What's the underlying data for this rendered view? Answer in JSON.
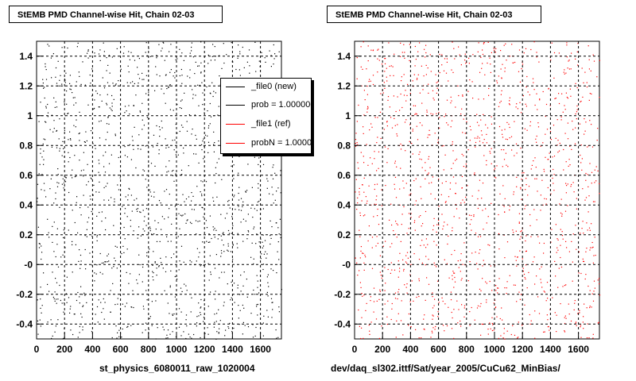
{
  "titles": {
    "left": "StEMB PMD Channel-wise Hit, Chain 02-03",
    "right": "StEMB PMD Channel-wise Hit, Chain 02-03"
  },
  "bottom_labels": {
    "left": "st_physics_6080011_raw_1020004",
    "right": "dev/daq_sl302.ittf/Sat/year_2005/CuCu62_MinBias/"
  },
  "legend": {
    "items": [
      {
        "label": "_file0 (new)",
        "color": "#000000"
      },
      {
        "label": "prob = 1.000000",
        "color": "#000000"
      },
      {
        "label": "_file1 (ref)",
        "color": "#ff0000"
      },
      {
        "label": "probN = 1.000000",
        "color": "#ff0000"
      }
    ]
  },
  "chart_data": [
    {
      "type": "scatter",
      "title": "StEMB PMD Channel-wise Hit, Chain 02-03",
      "xlabel": "st_physics_6080011_raw_1020004",
      "ylabel": "",
      "xlim": [
        0,
        1750
      ],
      "ylim": [
        -0.5,
        1.5
      ],
      "x_ticks": [
        "0",
        "200",
        "400",
        "600",
        "800",
        "1000",
        "1200",
        "1400",
        "1600"
      ],
      "y_ticks": [
        "-0.4",
        "-0.2",
        "-0",
        "0.2",
        "0.4",
        "0.6",
        "0.8",
        "1",
        "1.2",
        "1.4"
      ],
      "grid": true,
      "marker_color": "#000000",
      "legend_placement": "top-right"
    },
    {
      "type": "scatter",
      "title": "StEMB PMD Channel-wise Hit, Chain 02-03",
      "xlabel": "dev/daq_sl302.ittf/Sat/year_2005/CuCu62_MinBias/",
      "ylabel": "",
      "xlim": [
        0,
        1750
      ],
      "ylim": [
        -0.5,
        1.5
      ],
      "x_ticks": [
        "0",
        "200",
        "400",
        "600",
        "800",
        "1000",
        "1200",
        "1400",
        "1600"
      ],
      "y_ticks": [
        "-0.4",
        "-0.2",
        "-0",
        "0.2",
        "0.4",
        "0.6",
        "0.8",
        "1",
        "1.2",
        "1.4"
      ],
      "grid": true,
      "marker_color": "#ff0000"
    }
  ]
}
